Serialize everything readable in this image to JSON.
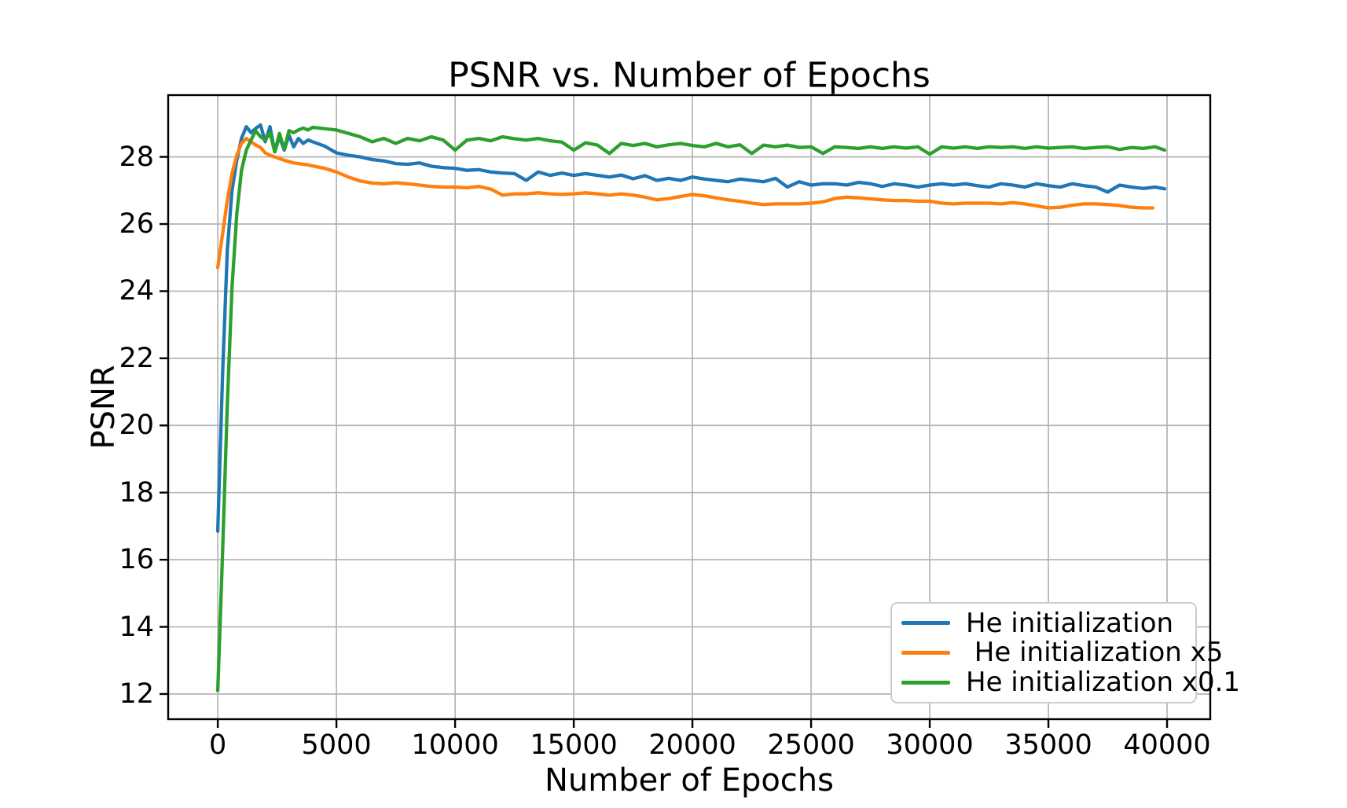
{
  "chart_data": {
    "type": "line",
    "title": "PSNR vs. Number of Epochs",
    "xlabel": "Number of Epochs",
    "ylabel": "PSNR",
    "xlim": [
      -2090,
      41820
    ],
    "ylim": [
      11.25,
      29.84
    ],
    "xticks": [
      0,
      5000,
      10000,
      15000,
      20000,
      25000,
      30000,
      35000,
      40000
    ],
    "yticks": [
      12,
      14,
      16,
      18,
      20,
      22,
      24,
      26,
      28
    ],
    "grid": true,
    "grid_color": "#b4b4b4",
    "axis_color": "#000000",
    "legend_position": "lower right",
    "series": [
      {
        "name": "He initialization",
        "color": "#1f77b4",
        "x": [
          0,
          200,
          400,
          600,
          800,
          1000,
          1200,
          1400,
          1600,
          1800,
          2000,
          2200,
          2400,
          2600,
          2800,
          3000,
          3200,
          3400,
          3600,
          3800,
          4000,
          4500,
          5000,
          5500,
          6000,
          6500,
          7000,
          7500,
          8000,
          8500,
          9000,
          9500,
          10000,
          10500,
          11000,
          11500,
          12000,
          12500,
          13000,
          13500,
          14000,
          14500,
          15000,
          15500,
          16000,
          16500,
          17000,
          17500,
          18000,
          18500,
          19000,
          19500,
          20000,
          20500,
          21000,
          21500,
          22000,
          22500,
          23000,
          23500,
          24000,
          24500,
          25000,
          25500,
          26000,
          26500,
          27000,
          27500,
          28000,
          28500,
          29000,
          29500,
          30000,
          30500,
          31000,
          31500,
          32000,
          32500,
          33000,
          33500,
          34000,
          34500,
          35000,
          35500,
          36000,
          36500,
          37000,
          37500,
          38000,
          38500,
          39000,
          39500,
          39900
        ],
        "y": [
          16.85,
          21.5,
          25.2,
          27.0,
          27.9,
          28.55,
          28.9,
          28.72,
          28.85,
          28.95,
          28.45,
          28.9,
          28.15,
          28.6,
          28.2,
          28.65,
          28.3,
          28.55,
          28.4,
          28.5,
          28.45,
          28.32,
          28.12,
          28.05,
          28.0,
          27.92,
          27.88,
          27.8,
          27.78,
          27.82,
          27.72,
          27.68,
          27.66,
          27.6,
          27.62,
          27.55,
          27.52,
          27.5,
          27.3,
          27.55,
          27.45,
          27.52,
          27.45,
          27.5,
          27.45,
          27.4,
          27.46,
          27.35,
          27.44,
          27.3,
          27.36,
          27.3,
          27.4,
          27.34,
          27.3,
          27.26,
          27.34,
          27.3,
          27.26,
          27.36,
          27.1,
          27.26,
          27.16,
          27.2,
          27.2,
          27.16,
          27.24,
          27.2,
          27.12,
          27.2,
          27.16,
          27.1,
          27.16,
          27.2,
          27.16,
          27.2,
          27.14,
          27.1,
          27.2,
          27.16,
          27.1,
          27.2,
          27.14,
          27.1,
          27.2,
          27.14,
          27.1,
          26.95,
          27.16,
          27.1,
          27.06,
          27.1,
          27.05
        ]
      },
      {
        "name": " He initialization x5",
        "color": "#ff7f0e",
        "x": [
          0,
          200,
          400,
          600,
          800,
          1000,
          1200,
          1400,
          1600,
          1800,
          2000,
          2200,
          2400,
          2600,
          2800,
          3000,
          3200,
          3400,
          3600,
          3800,
          4000,
          4500,
          5000,
          5500,
          6000,
          6500,
          7000,
          7500,
          8000,
          8500,
          9000,
          9500,
          10000,
          10500,
          11000,
          11500,
          12000,
          12500,
          13000,
          13500,
          14000,
          14500,
          15000,
          15500,
          16000,
          16500,
          17000,
          17500,
          18000,
          18500,
          19000,
          19500,
          20000,
          20500,
          21000,
          21500,
          22000,
          22500,
          23000,
          23500,
          24000,
          24500,
          25000,
          25500,
          26000,
          26500,
          27000,
          27500,
          28000,
          28500,
          29000,
          29500,
          30000,
          30500,
          31000,
          31500,
          32000,
          32500,
          33000,
          33500,
          34000,
          34500,
          35000,
          35500,
          36000,
          36500,
          37000,
          37500,
          38000,
          38500,
          39000,
          39400
        ],
        "y": [
          24.7,
          25.7,
          26.7,
          27.5,
          28.05,
          28.4,
          28.55,
          28.45,
          28.35,
          28.28,
          28.12,
          28.05,
          28.0,
          27.95,
          27.9,
          27.86,
          27.82,
          27.8,
          27.78,
          27.76,
          27.73,
          27.66,
          27.55,
          27.4,
          27.28,
          27.22,
          27.2,
          27.23,
          27.2,
          27.16,
          27.12,
          27.1,
          27.1,
          27.08,
          27.12,
          27.04,
          26.86,
          26.9,
          26.9,
          26.93,
          26.9,
          26.88,
          26.9,
          26.93,
          26.9,
          26.86,
          26.9,
          26.86,
          26.8,
          26.72,
          26.76,
          26.82,
          26.88,
          26.84,
          26.78,
          26.72,
          26.68,
          26.62,
          26.58,
          26.6,
          26.6,
          26.6,
          26.62,
          26.66,
          26.76,
          26.8,
          26.78,
          26.75,
          26.72,
          26.7,
          26.7,
          26.68,
          26.68,
          26.62,
          26.6,
          26.62,
          26.62,
          26.62,
          26.6,
          26.64,
          26.6,
          26.54,
          26.48,
          26.5,
          26.56,
          26.6,
          26.6,
          26.58,
          26.55,
          26.5,
          26.48,
          26.48
        ]
      },
      {
        "name": "He initialization x0.1",
        "color": "#2ca02c",
        "x": [
          0,
          200,
          400,
          600,
          800,
          1000,
          1200,
          1400,
          1600,
          1800,
          2000,
          2200,
          2400,
          2600,
          2800,
          3000,
          3200,
          3400,
          3600,
          3800,
          4000,
          4500,
          5000,
          5500,
          6000,
          6500,
          7000,
          7500,
          8000,
          8500,
          9000,
          9500,
          10000,
          10500,
          11000,
          11500,
          12000,
          12500,
          13000,
          13500,
          14000,
          14500,
          15000,
          15500,
          16000,
          16500,
          17000,
          17500,
          18000,
          18500,
          19000,
          19500,
          20000,
          20500,
          21000,
          21500,
          22000,
          22500,
          23000,
          23500,
          24000,
          24500,
          25000,
          25500,
          26000,
          26500,
          27000,
          27500,
          28000,
          28500,
          29000,
          29500,
          30000,
          30500,
          31000,
          31500,
          32000,
          32500,
          33000,
          33500,
          34000,
          34500,
          35000,
          35500,
          36000,
          36500,
          37000,
          37500,
          38000,
          38500,
          39000,
          39500,
          39900
        ],
        "y": [
          12.1,
          16.2,
          20.6,
          24.1,
          26.3,
          27.6,
          28.2,
          28.5,
          28.78,
          28.6,
          28.5,
          28.72,
          28.15,
          28.7,
          28.22,
          28.78,
          28.72,
          28.8,
          28.86,
          28.8,
          28.88,
          28.84,
          28.8,
          28.7,
          28.6,
          28.45,
          28.55,
          28.4,
          28.55,
          28.48,
          28.6,
          28.5,
          28.2,
          28.5,
          28.55,
          28.48,
          28.6,
          28.54,
          28.5,
          28.55,
          28.48,
          28.44,
          28.2,
          28.42,
          28.35,
          28.1,
          28.4,
          28.34,
          28.4,
          28.3,
          28.36,
          28.4,
          28.34,
          28.3,
          28.4,
          28.3,
          28.36,
          28.1,
          28.35,
          28.3,
          28.35,
          28.28,
          28.3,
          28.1,
          28.3,
          28.28,
          28.25,
          28.3,
          28.25,
          28.3,
          28.26,
          28.3,
          28.08,
          28.3,
          28.26,
          28.3,
          28.25,
          28.3,
          28.28,
          28.3,
          28.25,
          28.3,
          28.26,
          28.28,
          28.3,
          28.25,
          28.28,
          28.3,
          28.22,
          28.28,
          28.25,
          28.3,
          28.2
        ]
      }
    ]
  }
}
